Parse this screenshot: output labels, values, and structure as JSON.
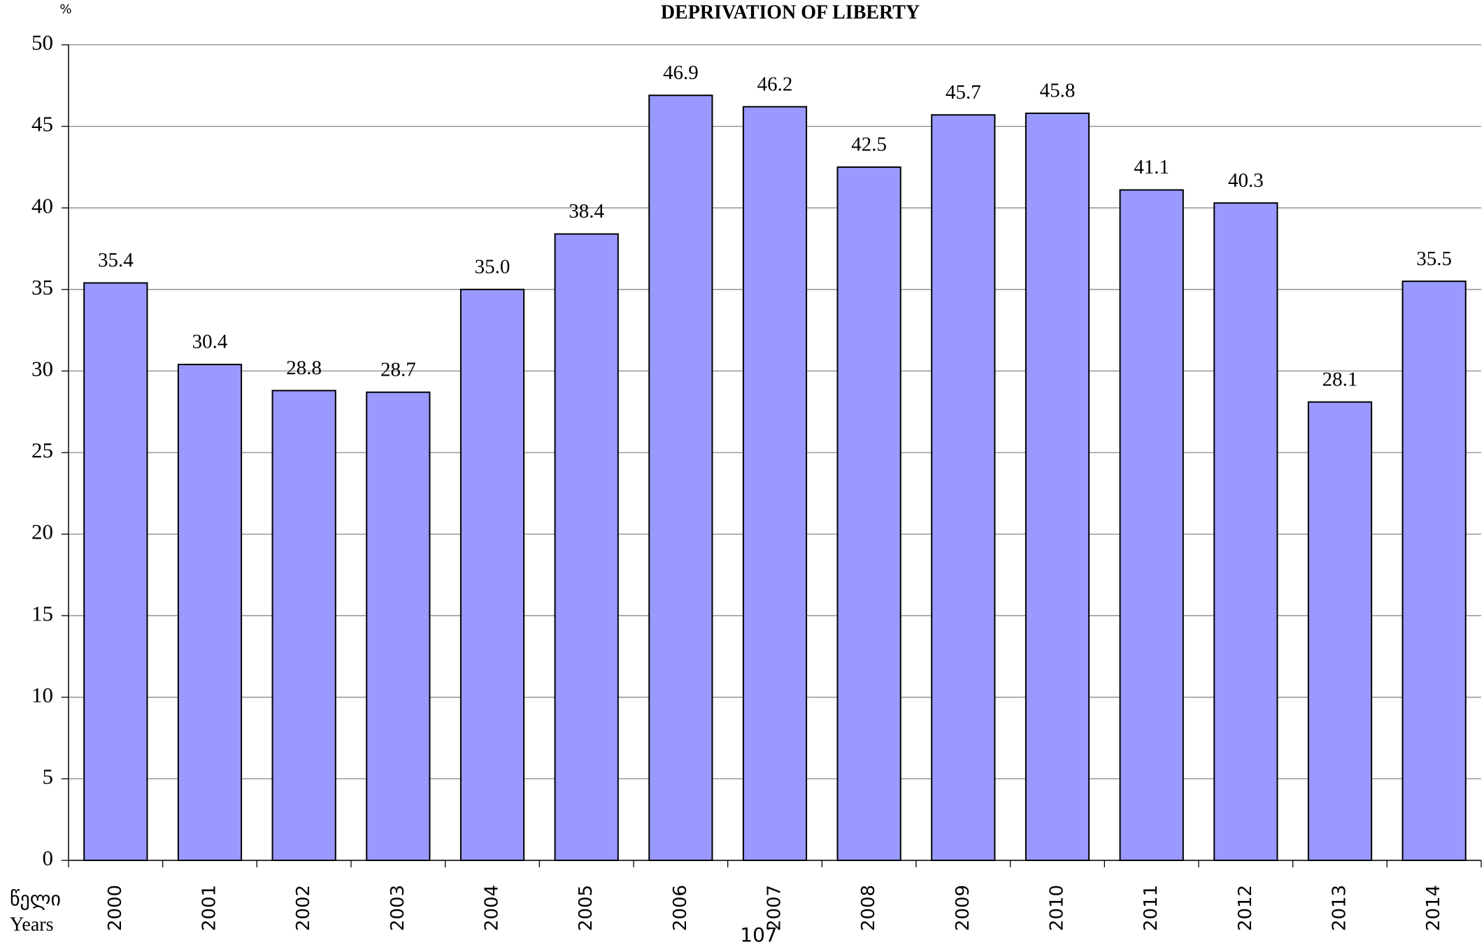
{
  "chart_data": {
    "type": "bar",
    "title": "DEPRIVATION OF LIBERTY",
    "y_unit": "%",
    "x_label": [
      "წელი",
      "Years"
    ],
    "categories": [
      "2000",
      "2001",
      "2002",
      "2003",
      "2004",
      "2005",
      "2006",
      "2007",
      "2008",
      "2009",
      "2010",
      "2011",
      "2012",
      "2013",
      "2014"
    ],
    "values": [
      35.4,
      30.4,
      28.8,
      28.7,
      35.0,
      38.4,
      46.9,
      46.2,
      42.5,
      45.7,
      45.8,
      41.1,
      40.3,
      28.1,
      35.5
    ],
    "value_labels": [
      "35.4",
      "30.4",
      "28.8",
      "28.7",
      "35.0",
      "38.4",
      "46.9",
      "46.2",
      "42.5",
      "45.7",
      "45.8",
      "41.1",
      "40.3",
      "28.1",
      "35.5"
    ],
    "color": "#9999ff",
    "ylim": [
      0,
      50
    ],
    "yticks": [
      0,
      5,
      10,
      15,
      20,
      25,
      30,
      35,
      40,
      45,
      50
    ],
    "grid": true
  },
  "page_number": "107"
}
